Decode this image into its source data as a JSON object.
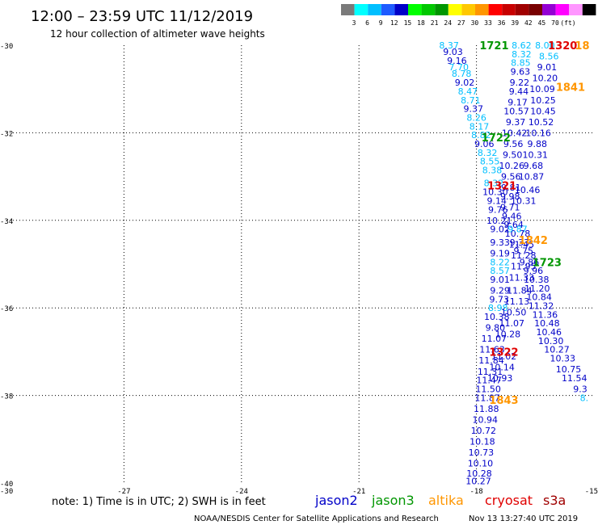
{
  "header": {
    "title": "12:00 – 23:59 UTC 11/12/2019",
    "subtitle": "12 hour collection of altimeter wave heights"
  },
  "colorbar": {
    "colors": [
      "#7a7a7a",
      "#00ffff",
      "#00bfff",
      "#1e5bff",
      "#0000c8",
      "#00ff00",
      "#00c800",
      "#009600",
      "#ffff00",
      "#ffc800",
      "#ff9600",
      "#ff0000",
      "#c80000",
      "#a00000",
      "#780000",
      "#9400d3",
      "#ff00ff",
      "#ff96ff",
      "#000000"
    ],
    "labels": [
      "3",
      "6",
      "9",
      "12",
      "15",
      "18",
      "21",
      "24",
      "27",
      "30",
      "33",
      "36",
      "39",
      "42",
      "45",
      "70",
      "(ft)"
    ]
  },
  "chart_data": {
    "type": "scatter",
    "title": "12 hour collection of altimeter wave heights",
    "xlim": [
      -30,
      -15
    ],
    "ylim": [
      -40,
      -30
    ],
    "x_ticks": [
      "-30",
      "-27",
      "-24",
      "-21",
      "-18",
      "-15"
    ],
    "y_ticks": [
      "-30",
      "-32",
      "-34",
      "-36",
      "-38",
      "-40"
    ],
    "grid": true,
    "units": "ft",
    "series": [
      {
        "name": "jason2",
        "color": "#0000c8"
      },
      {
        "name": "jason3",
        "color": "#009600"
      },
      {
        "name": "altika",
        "color": "#ff9600"
      },
      {
        "name": "cryosat",
        "color": "#e00000"
      },
      {
        "name": "s3a",
        "color": "#a00000"
      }
    ],
    "pass_labels": [
      {
        "text": "1721",
        "lon": -17.55,
        "lat": -30.0,
        "color": "#009600"
      },
      {
        "text": "1320",
        "lon": -15.8,
        "lat": -30.0,
        "color": "#e00000"
      },
      {
        "text": "18",
        "lon": -15.3,
        "lat": -30.0,
        "color": "#ff9600"
      },
      {
        "text": "1841",
        "lon": -15.6,
        "lat": -30.95,
        "color": "#ff9600"
      },
      {
        "text": "1722",
        "lon": -17.5,
        "lat": -32.1,
        "color": "#009600"
      },
      {
        "text": "1321",
        "lon": -17.35,
        "lat": -33.2,
        "color": "#e00000"
      },
      {
        "text": "1842",
        "lon": -16.55,
        "lat": -34.45,
        "color": "#ff9600"
      },
      {
        "text": "1723",
        "lon": -16.2,
        "lat": -34.95,
        "color": "#009600"
      },
      {
        "text": "1322",
        "lon": -17.3,
        "lat": -37.0,
        "color": "#e00000"
      },
      {
        "text": "1843",
        "lon": -17.3,
        "lat": -38.1,
        "color": "#ff9600"
      }
    ],
    "points": [
      {
        "lon": -18.7,
        "lat": -30.0,
        "v": "8.37",
        "c": "#00bfff"
      },
      {
        "lon": -18.6,
        "lat": -30.15,
        "v": "9.03",
        "c": "#0000c8"
      },
      {
        "lon": -18.5,
        "lat": -30.35,
        "v": "9.16",
        "c": "#0000c8"
      },
      {
        "lon": -18.45,
        "lat": -30.5,
        "v": "7.70",
        "c": "#00bfff"
      },
      {
        "lon": -18.38,
        "lat": -30.65,
        "v": "8.78",
        "c": "#00bfff"
      },
      {
        "lon": -18.3,
        "lat": -30.85,
        "v": "9.02",
        "c": "#0000c8"
      },
      {
        "lon": -18.22,
        "lat": -31.05,
        "v": "8.47",
        "c": "#00bfff"
      },
      {
        "lon": -18.15,
        "lat": -31.25,
        "v": "8.71",
        "c": "#00bfff"
      },
      {
        "lon": -18.08,
        "lat": -31.45,
        "v": "9.37",
        "c": "#0000c8"
      },
      {
        "lon": -18.0,
        "lat": -31.65,
        "v": "8.26",
        "c": "#00bfff"
      },
      {
        "lon": -17.93,
        "lat": -31.85,
        "v": "8.17",
        "c": "#00bfff"
      },
      {
        "lon": -17.88,
        "lat": -32.05,
        "v": "8.82",
        "c": "#00bfff"
      },
      {
        "lon": -17.8,
        "lat": -32.25,
        "v": "9.06",
        "c": "#0000c8"
      },
      {
        "lon": -17.72,
        "lat": -32.45,
        "v": "8.32",
        "c": "#00bfff"
      },
      {
        "lon": -17.66,
        "lat": -32.65,
        "v": "8.55",
        "c": "#00bfff"
      },
      {
        "lon": -17.6,
        "lat": -32.85,
        "v": "8.38",
        "c": "#00bfff"
      },
      {
        "lon": -17.56,
        "lat": -33.15,
        "v": "8.32",
        "c": "#00bfff"
      },
      {
        "lon": -17.52,
        "lat": -33.35,
        "v": "10.30",
        "c": "#0000c8"
      },
      {
        "lon": -17.48,
        "lat": -33.55,
        "v": "9.14",
        "c": "#0000c8"
      },
      {
        "lon": -17.45,
        "lat": -33.75,
        "v": "9.76",
        "c": "#0000c8"
      },
      {
        "lon": -17.42,
        "lat": -34.0,
        "v": "10.21",
        "c": "#0000c8"
      },
      {
        "lon": -17.4,
        "lat": -34.2,
        "v": "9.02",
        "c": "#0000c8"
      },
      {
        "lon": -17.4,
        "lat": -34.5,
        "v": "9.33",
        "c": "#0000c8"
      },
      {
        "lon": -17.4,
        "lat": -34.75,
        "v": "9.19",
        "c": "#0000c8"
      },
      {
        "lon": -17.4,
        "lat": -34.95,
        "v": "8.22",
        "c": "#00bfff"
      },
      {
        "lon": -17.4,
        "lat": -35.15,
        "v": "8.57",
        "c": "#00bfff"
      },
      {
        "lon": -17.4,
        "lat": -35.35,
        "v": "9.01",
        "c": "#0000c8"
      },
      {
        "lon": -17.4,
        "lat": -35.6,
        "v": "9.29",
        "c": "#0000c8"
      },
      {
        "lon": -17.42,
        "lat": -35.8,
        "v": "9.73",
        "c": "#0000c8"
      },
      {
        "lon": -17.45,
        "lat": -36.0,
        "v": "8.98",
        "c": "#00bfff"
      },
      {
        "lon": -17.48,
        "lat": -36.2,
        "v": "10.38",
        "c": "#0000c8"
      },
      {
        "lon": -17.52,
        "lat": -36.45,
        "v": "9.80",
        "c": "#0000c8"
      },
      {
        "lon": -17.55,
        "lat": -36.7,
        "v": "11.07",
        "c": "#0000c8"
      },
      {
        "lon": -17.6,
        "lat": -36.95,
        "v": "11.63",
        "c": "#0000c8"
      },
      {
        "lon": -17.62,
        "lat": -37.2,
        "v": "11.84",
        "c": "#0000c8"
      },
      {
        "lon": -17.65,
        "lat": -37.45,
        "v": "11.31",
        "c": "#0000c8"
      },
      {
        "lon": -17.68,
        "lat": -37.65,
        "v": "11.47",
        "c": "#0000c8"
      },
      {
        "lon": -17.7,
        "lat": -37.85,
        "v": "11.50",
        "c": "#0000c8"
      },
      {
        "lon": -17.72,
        "lat": -38.05,
        "v": "11.87",
        "c": "#0000c8"
      },
      {
        "lon": -17.75,
        "lat": -38.3,
        "v": "11.88",
        "c": "#0000c8"
      },
      {
        "lon": -17.78,
        "lat": -38.55,
        "v": "10.94",
        "c": "#0000c8"
      },
      {
        "lon": -17.82,
        "lat": -38.8,
        "v": "10.72",
        "c": "#0000c8"
      },
      {
        "lon": -17.85,
        "lat": -39.05,
        "v": "10.18",
        "c": "#0000c8"
      },
      {
        "lon": -17.88,
        "lat": -39.3,
        "v": "10.73",
        "c": "#0000c8"
      },
      {
        "lon": -17.9,
        "lat": -39.55,
        "v": "10.10",
        "c": "#0000c8"
      },
      {
        "lon": -17.93,
        "lat": -39.78,
        "v": "10.28",
        "c": "#0000c8"
      },
      {
        "lon": -17.95,
        "lat": -39.95,
        "v": "10.27",
        "c": "#0000c8"
      },
      {
        "lon": -16.85,
        "lat": -30.0,
        "v": "8.62",
        "c": "#00bfff"
      },
      {
        "lon": -16.85,
        "lat": -30.2,
        "v": "8.32",
        "c": "#00bfff"
      },
      {
        "lon": -16.87,
        "lat": -30.4,
        "v": "8.85",
        "c": "#00bfff"
      },
      {
        "lon": -16.88,
        "lat": -30.6,
        "v": "9.63",
        "c": "#0000c8"
      },
      {
        "lon": -16.9,
        "lat": -30.85,
        "v": "9.22",
        "c": "#0000c8"
      },
      {
        "lon": -16.92,
        "lat": -31.05,
        "v": "9.44",
        "c": "#0000c8"
      },
      {
        "lon": -16.95,
        "lat": -31.3,
        "v": "9.17",
        "c": "#0000c8"
      },
      {
        "lon": -16.98,
        "lat": -31.5,
        "v": "10.57",
        "c": "#0000c8"
      },
      {
        "lon": -17.0,
        "lat": -31.75,
        "v": "9.37",
        "c": "#0000c8"
      },
      {
        "lon": -17.03,
        "lat": -32.0,
        "v": "10.42",
        "c": "#0000c8"
      },
      {
        "lon": -17.06,
        "lat": -32.25,
        "v": "9.56",
        "c": "#0000c8"
      },
      {
        "lon": -17.08,
        "lat": -32.5,
        "v": "9.50",
        "c": "#0000c8"
      },
      {
        "lon": -17.1,
        "lat": -32.75,
        "v": "10.26",
        "c": "#0000c8"
      },
      {
        "lon": -17.12,
        "lat": -33.0,
        "v": "9.56",
        "c": "#0000c8"
      },
      {
        "lon": -17.12,
        "lat": -33.25,
        "v": "9.81",
        "c": "#0000c8"
      },
      {
        "lon": -17.14,
        "lat": -33.45,
        "v": "9.98",
        "c": "#0000c8"
      },
      {
        "lon": -17.14,
        "lat": -33.7,
        "v": "9.71",
        "c": "#0000c8"
      },
      {
        "lon": -17.1,
        "lat": -33.9,
        "v": "9.46",
        "c": "#0000c8"
      },
      {
        "lon": -17.05,
        "lat": -34.1,
        "v": "9.64",
        "c": "#0000c8"
      },
      {
        "lon": -16.95,
        "lat": -34.3,
        "v": "10.78",
        "c": "#0000c8"
      },
      {
        "lon": -16.85,
        "lat": -34.55,
        "v": "11.45",
        "c": "#0000c8"
      },
      {
        "lon": -16.8,
        "lat": -34.8,
        "v": "11.28",
        "c": "#0000c8"
      },
      {
        "lon": -16.8,
        "lat": -35.05,
        "v": "11.95",
        "c": "#0000c8"
      },
      {
        "lon": -16.85,
        "lat": -35.3,
        "v": "11.33",
        "c": "#0000c8"
      },
      {
        "lon": -16.9,
        "lat": -35.6,
        "v": "11.84",
        "c": "#0000c8"
      },
      {
        "lon": -16.97,
        "lat": -35.85,
        "v": "11.13",
        "c": "#0000c8"
      },
      {
        "lon": -17.05,
        "lat": -36.1,
        "v": "10.50",
        "c": "#0000c8"
      },
      {
        "lon": -17.1,
        "lat": -36.35,
        "v": "11.07",
        "c": "#0000c8"
      },
      {
        "lon": -17.2,
        "lat": -36.6,
        "v": "10.28",
        "c": "#0000c8"
      },
      {
        "lon": -17.3,
        "lat": -37.1,
        "v": "11.02",
        "c": "#0000c8"
      },
      {
        "lon": -17.35,
        "lat": -37.35,
        "v": "10.14",
        "c": "#0000c8"
      },
      {
        "lon": -17.4,
        "lat": -37.6,
        "v": "10.93",
        "c": "#0000c8"
      },
      {
        "lon": -16.25,
        "lat": -30.0,
        "v": "8.00",
        "c": "#00bfff"
      },
      {
        "lon": -16.15,
        "lat": -30.25,
        "v": "8.56",
        "c": "#00bfff"
      },
      {
        "lon": -16.2,
        "lat": -30.5,
        "v": "9.01",
        "c": "#0000c8"
      },
      {
        "lon": -16.25,
        "lat": -30.75,
        "v": "10.20",
        "c": "#0000c8"
      },
      {
        "lon": -16.32,
        "lat": -31.0,
        "v": "10.09",
        "c": "#0000c8"
      },
      {
        "lon": -16.3,
        "lat": -31.25,
        "v": "10.25",
        "c": "#0000c8"
      },
      {
        "lon": -16.3,
        "lat": -31.5,
        "v": "10.45",
        "c": "#0000c8"
      },
      {
        "lon": -16.35,
        "lat": -31.75,
        "v": "10.52",
        "c": "#0000c8"
      },
      {
        "lon": -16.42,
        "lat": -32.0,
        "v": "10.16",
        "c": "#0000c8"
      },
      {
        "lon": -16.45,
        "lat": -32.25,
        "v": "9.88",
        "c": "#0000c8"
      },
      {
        "lon": -16.5,
        "lat": -32.5,
        "v": "10.31",
        "c": "#0000c8"
      },
      {
        "lon": -16.55,
        "lat": -32.75,
        "v": "9.68",
        "c": "#0000c8"
      },
      {
        "lon": -16.6,
        "lat": -33.0,
        "v": "10.87",
        "c": "#0000c8"
      },
      {
        "lon": -16.7,
        "lat": -33.3,
        "v": "10.46",
        "c": "#0000c8"
      },
      {
        "lon": -16.8,
        "lat": -33.55,
        "v": "10.31",
        "c": "#0000c8"
      },
      {
        "lon": -16.95,
        "lat": -34.2,
        "v": "9.87",
        "c": "#00bfff"
      },
      {
        "lon": -16.9,
        "lat": -34.5,
        "v": "9.33",
        "c": "#0000c8"
      },
      {
        "lon": -16.8,
        "lat": -34.7,
        "v": "9.75",
        "c": "#0000c8"
      },
      {
        "lon": -16.65,
        "lat": -34.95,
        "v": "9.86",
        "c": "#0000c8"
      },
      {
        "lon": -16.55,
        "lat": -35.15,
        "v": "9.96",
        "c": "#0000c8"
      },
      {
        "lon": -16.47,
        "lat": -35.35,
        "v": "10.38",
        "c": "#0000c8"
      },
      {
        "lon": -16.45,
        "lat": -35.55,
        "v": "11.20",
        "c": "#0000c8"
      },
      {
        "lon": -16.4,
        "lat": -35.75,
        "v": "10.84",
        "c": "#0000c8"
      },
      {
        "lon": -16.35,
        "lat": -35.95,
        "v": "11.32",
        "c": "#0000c8"
      },
      {
        "lon": -16.25,
        "lat": -36.15,
        "v": "11.36",
        "c": "#0000c8"
      },
      {
        "lon": -16.2,
        "lat": -36.35,
        "v": "10.48",
        "c": "#0000c8"
      },
      {
        "lon": -16.15,
        "lat": -36.55,
        "v": "10.46",
        "c": "#0000c8"
      },
      {
        "lon": -16.1,
        "lat": -36.75,
        "v": "10.30",
        "c": "#0000c8"
      },
      {
        "lon": -15.95,
        "lat": -36.95,
        "v": "10.27",
        "c": "#0000c8"
      },
      {
        "lon": -15.8,
        "lat": -37.15,
        "v": "10.33",
        "c": "#0000c8"
      },
      {
        "lon": -15.65,
        "lat": -37.4,
        "v": "10.75",
        "c": "#0000c8"
      },
      {
        "lon": -15.5,
        "lat": -37.6,
        "v": "11.54",
        "c": "#0000c8"
      },
      {
        "lon": -15.35,
        "lat": -37.85,
        "v": "9.3",
        "c": "#0000c8"
      },
      {
        "lon": -15.25,
        "lat": -38.05,
        "v": "8.",
        "c": "#00bfff"
      }
    ]
  },
  "footer": {
    "note": "note: 1) Time is in UTC; 2) SWH is in feet",
    "credit": "NOAA/NESDIS Center for Satellite Applications and Research",
    "timestamp": "Nov 13 13:27:40 UTC 2019"
  }
}
